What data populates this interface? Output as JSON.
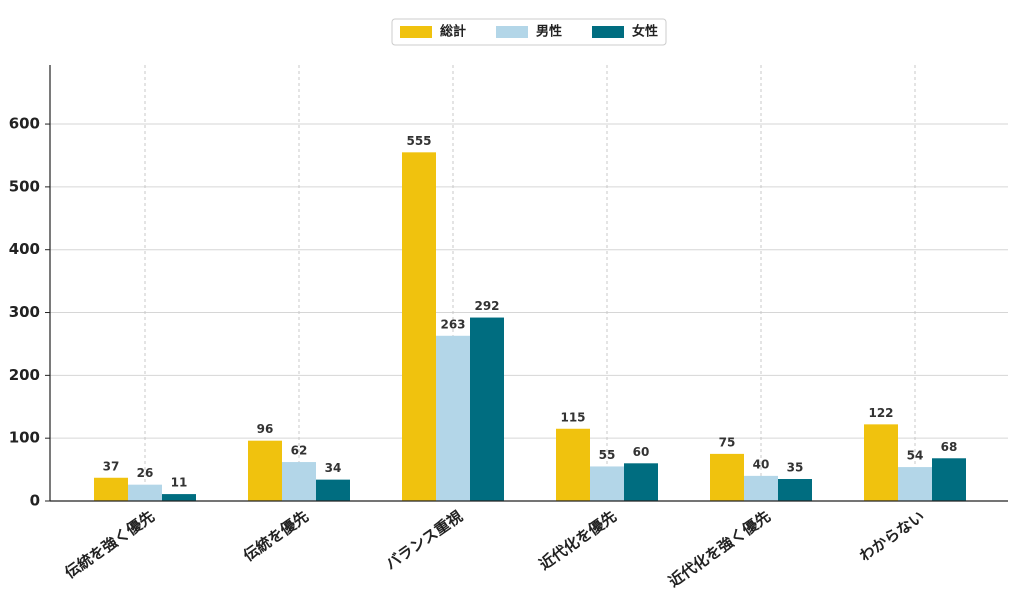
{
  "chart_data": {
    "type": "bar",
    "categories": [
      "伝統を強く優先",
      "伝統を優先",
      "バランス重視",
      "近代化を優先",
      "近代化を強く優先",
      "わからない"
    ],
    "series": [
      {
        "name": "総計",
        "color": "#f0c20e",
        "values": [
          37,
          96,
          555,
          115,
          75,
          122
        ]
      },
      {
        "name": "男性",
        "color": "#b3d6e8",
        "values": [
          26,
          62,
          263,
          55,
          40,
          54
        ]
      },
      {
        "name": "女性",
        "color": "#006d80",
        "values": [
          11,
          34,
          292,
          60,
          35,
          68
        ]
      }
    ],
    "ylim": [
      0,
      694
    ],
    "yticks": [
      0,
      100,
      200,
      300,
      400,
      500,
      600
    ],
    "grid": true,
    "legend": "top"
  }
}
